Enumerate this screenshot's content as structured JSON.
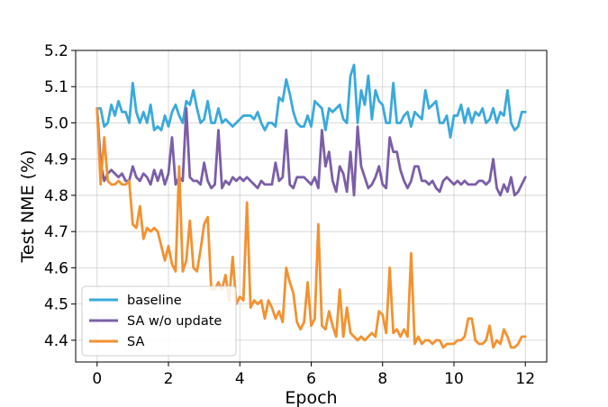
{
  "chart_data": {
    "type": "line",
    "xlabel": "Epoch",
    "ylabel": "Test NME (%)",
    "xlim": [
      -0.6,
      12.6
    ],
    "ylim": [
      4.34,
      5.2
    ],
    "xticks": [
      0,
      2,
      4,
      6,
      8,
      10,
      12
    ],
    "xtick_labels": [
      "0",
      "2",
      "4",
      "6",
      "8",
      "10",
      "12"
    ],
    "yticks": [
      4.4,
      4.5,
      4.6,
      4.7,
      4.8,
      4.9,
      5.0,
      5.1,
      5.2
    ],
    "ytick_labels": [
      "4.4",
      "4.5",
      "4.6",
      "4.7",
      "4.8",
      "4.9",
      "5.0",
      "5.1",
      "5.2"
    ],
    "grid": true,
    "legend_position": "lower-left",
    "series": [
      {
        "name": "baseline",
        "color": "#3aa9dc",
        "x": [
          0.0,
          0.1,
          0.2,
          0.3,
          0.4,
          0.5,
          0.6,
          0.7,
          0.8,
          0.9,
          1.0,
          1.1,
          1.2,
          1.3,
          1.4,
          1.5,
          1.6,
          1.7,
          1.8,
          1.9,
          2.0,
          2.1,
          2.2,
          2.3,
          2.4,
          2.5,
          2.6,
          2.7,
          2.8,
          2.9,
          3.0,
          3.1,
          3.2,
          3.3,
          3.4,
          3.5,
          3.6,
          3.7,
          3.8,
          3.9,
          4.0,
          4.1,
          4.2,
          4.3,
          4.4,
          4.5,
          4.6,
          4.7,
          4.8,
          4.9,
          5.0,
          5.1,
          5.2,
          5.3,
          5.4,
          5.5,
          5.6,
          5.7,
          5.8,
          5.9,
          6.0,
          6.1,
          6.2,
          6.3,
          6.4,
          6.5,
          6.6,
          6.7,
          6.8,
          6.9,
          7.0,
          7.1,
          7.2,
          7.3,
          7.4,
          7.5,
          7.6,
          7.7,
          7.8,
          7.9,
          8.0,
          8.1,
          8.2,
          8.3,
          8.4,
          8.5,
          8.6,
          8.7,
          8.8,
          8.9,
          9.0,
          9.1,
          9.2,
          9.3,
          9.4,
          9.5,
          9.6,
          9.7,
          9.8,
          9.9,
          10.0,
          10.1,
          10.2,
          10.3,
          10.4,
          10.5,
          10.6,
          10.7,
          10.8,
          10.9,
          11.0,
          11.1,
          11.2,
          11.3,
          11.4,
          11.5,
          11.6,
          11.7,
          11.8,
          11.9,
          12.0
        ],
        "y": [
          5.04,
          5.04,
          4.99,
          5.0,
          5.05,
          5.02,
          5.06,
          5.03,
          5.03,
          5.0,
          5.11,
          5.03,
          5.0,
          5.03,
          5.0,
          5.05,
          4.98,
          4.99,
          4.98,
          5.02,
          4.99,
          5.03,
          5.05,
          5.02,
          5.0,
          5.06,
          5.05,
          5.09,
          5.04,
          5.0,
          5.01,
          5.06,
          5.0,
          5.0,
          5.04,
          5.0,
          5.01,
          5.0,
          4.99,
          5.0,
          5.01,
          5.02,
          5.02,
          5.02,
          5.01,
          5.03,
          5.0,
          4.98,
          5.0,
          5.0,
          4.99,
          5.07,
          5.06,
          5.12,
          5.08,
          5.03,
          5.0,
          4.99,
          4.99,
          5.02,
          4.99,
          5.06,
          5.05,
          5.04,
          4.98,
          5.04,
          5.03,
          5.04,
          5.05,
          5.01,
          5.0,
          5.13,
          5.16,
          5.0,
          5.09,
          5.05,
          5.13,
          5.01,
          5.09,
          5.06,
          5.05,
          5.0,
          5.0,
          5.11,
          5.0,
          5.0,
          5.02,
          5.03,
          4.99,
          5.03,
          5.02,
          5.01,
          5.09,
          5.04,
          5.05,
          5.06,
          5.0,
          5.0,
          5.02,
          4.96,
          5.02,
          5.02,
          5.05,
          5.0,
          5.04,
          5.0,
          5.03,
          5.02,
          5.04,
          5.0,
          5.01,
          5.04,
          5.0,
          5.03,
          5.02,
          5.09,
          5.0,
          4.98,
          4.99,
          5.03,
          5.03
        ],
        "note": ""
      },
      {
        "name": "SA w/o update",
        "color": "#7b5ea7",
        "x": [
          0.0,
          0.1,
          0.2,
          0.3,
          0.4,
          0.5,
          0.6,
          0.7,
          0.8,
          0.9,
          1.0,
          1.1,
          1.2,
          1.3,
          1.4,
          1.5,
          1.6,
          1.7,
          1.8,
          1.9,
          2.0,
          2.1,
          2.2,
          2.3,
          2.4,
          2.5,
          2.6,
          2.7,
          2.8,
          2.9,
          3.0,
          3.1,
          3.2,
          3.3,
          3.4,
          3.5,
          3.6,
          3.7,
          3.8,
          3.9,
          4.0,
          4.1,
          4.2,
          4.3,
          4.4,
          4.5,
          4.6,
          4.7,
          4.8,
          4.9,
          5.0,
          5.1,
          5.2,
          5.3,
          5.4,
          5.5,
          5.6,
          5.7,
          5.8,
          5.9,
          6.0,
          6.1,
          6.2,
          6.3,
          6.4,
          6.5,
          6.6,
          6.7,
          6.8,
          6.9,
          7.0,
          7.1,
          7.2,
          7.3,
          7.4,
          7.5,
          7.6,
          7.7,
          7.8,
          7.9,
          8.0,
          8.1,
          8.2,
          8.3,
          8.4,
          8.5,
          8.6,
          8.7,
          8.8,
          8.9,
          9.0,
          9.1,
          9.2,
          9.3,
          9.4,
          9.5,
          9.6,
          9.7,
          9.8,
          9.9,
          10.0,
          10.1,
          10.2,
          10.3,
          10.4,
          10.5,
          10.6,
          10.7,
          10.8,
          10.9,
          11.0,
          11.1,
          11.2,
          11.3,
          11.4,
          11.5,
          11.6,
          11.7,
          11.8,
          11.9,
          12.0
        ],
        "y": [
          5.04,
          4.89,
          4.84,
          4.86,
          4.87,
          4.86,
          4.85,
          4.86,
          4.84,
          4.84,
          4.88,
          4.85,
          4.84,
          4.86,
          4.85,
          4.83,
          4.87,
          4.84,
          4.87,
          4.83,
          4.86,
          4.96,
          4.83,
          4.85,
          4.84,
          5.04,
          4.85,
          4.84,
          4.84,
          4.83,
          4.89,
          4.84,
          4.82,
          4.83,
          4.98,
          4.82,
          4.84,
          4.83,
          4.85,
          4.84,
          4.85,
          4.84,
          4.85,
          4.84,
          4.83,
          4.82,
          4.84,
          4.83,
          4.83,
          4.83,
          4.89,
          4.84,
          4.85,
          4.98,
          4.83,
          4.82,
          4.85,
          4.85,
          4.85,
          4.84,
          4.83,
          4.85,
          4.82,
          4.98,
          4.88,
          4.92,
          4.84,
          4.81,
          4.88,
          4.86,
          4.81,
          4.92,
          4.8,
          4.99,
          4.88,
          4.85,
          4.82,
          4.83,
          4.85,
          4.88,
          4.83,
          4.82,
          4.96,
          4.92,
          4.92,
          4.87,
          4.84,
          4.82,
          4.84,
          4.88,
          4.88,
          4.84,
          4.84,
          4.83,
          4.84,
          4.82,
          4.81,
          4.84,
          4.85,
          4.84,
          4.83,
          4.84,
          4.83,
          4.84,
          4.83,
          4.83,
          4.83,
          4.84,
          4.84,
          4.83,
          4.84,
          4.9,
          4.82,
          4.8,
          4.83,
          4.81,
          4.85,
          4.8,
          4.81,
          4.83,
          4.85
        ],
        "note": ""
      },
      {
        "name": "SA",
        "color": "#f29230",
        "x": [
          0.0,
          0.1,
          0.2,
          0.3,
          0.4,
          0.5,
          0.6,
          0.7,
          0.8,
          0.9,
          1.0,
          1.1,
          1.2,
          1.3,
          1.4,
          1.5,
          1.6,
          1.7,
          1.8,
          1.9,
          2.0,
          2.1,
          2.2,
          2.3,
          2.4,
          2.5,
          2.6,
          2.7,
          2.8,
          2.9,
          3.0,
          3.1,
          3.2,
          3.3,
          3.4,
          3.5,
          3.6,
          3.7,
          3.8,
          3.9,
          4.0,
          4.1,
          4.2,
          4.3,
          4.4,
          4.5,
          4.6,
          4.7,
          4.8,
          4.9,
          5.0,
          5.1,
          5.2,
          5.3,
          5.4,
          5.5,
          5.6,
          5.7,
          5.8,
          5.9,
          6.0,
          6.1,
          6.2,
          6.3,
          6.4,
          6.5,
          6.6,
          6.7,
          6.8,
          6.9,
          7.0,
          7.1,
          7.2,
          7.3,
          7.4,
          7.5,
          7.6,
          7.7,
          7.8,
          7.9,
          8.0,
          8.1,
          8.2,
          8.3,
          8.4,
          8.5,
          8.6,
          8.7,
          8.8,
          8.9,
          9.0,
          9.1,
          9.2,
          9.3,
          9.4,
          9.5,
          9.6,
          9.7,
          9.8,
          9.9,
          10.0,
          10.1,
          10.2,
          10.3,
          10.4,
          10.5,
          10.6,
          10.7,
          10.8,
          10.9,
          11.0,
          11.1,
          11.2,
          11.3,
          11.4,
          11.5,
          11.6,
          11.7,
          11.8,
          11.9,
          12.0
        ],
        "y": [
          5.04,
          4.83,
          4.96,
          4.84,
          4.83,
          4.83,
          4.84,
          4.83,
          4.83,
          4.84,
          4.72,
          4.71,
          4.77,
          4.68,
          4.71,
          4.7,
          4.71,
          4.7,
          4.66,
          4.62,
          4.66,
          4.61,
          4.59,
          4.88,
          4.59,
          4.62,
          4.73,
          4.6,
          4.59,
          4.65,
          4.72,
          4.74,
          4.54,
          4.54,
          4.56,
          4.54,
          4.58,
          4.51,
          4.63,
          4.5,
          4.52,
          4.51,
          4.78,
          4.49,
          4.51,
          4.5,
          4.51,
          4.46,
          4.51,
          4.49,
          4.46,
          4.48,
          4.45,
          4.6,
          4.56,
          4.53,
          4.45,
          4.43,
          4.45,
          4.56,
          4.44,
          4.46,
          4.72,
          4.44,
          4.43,
          4.48,
          4.44,
          4.41,
          4.54,
          4.41,
          4.49,
          4.42,
          4.41,
          4.4,
          4.41,
          4.4,
          4.41,
          4.42,
          4.41,
          4.48,
          4.47,
          4.42,
          4.6,
          4.42,
          4.43,
          4.41,
          4.43,
          4.41,
          4.64,
          4.39,
          4.41,
          4.39,
          4.4,
          4.4,
          4.39,
          4.4,
          4.4,
          4.38,
          4.39,
          4.39,
          4.39,
          4.4,
          4.4,
          4.41,
          4.46,
          4.46,
          4.4,
          4.39,
          4.39,
          4.4,
          4.44,
          4.38,
          4.4,
          4.39,
          4.43,
          4.41,
          4.38,
          4.38,
          4.39,
          4.41,
          4.41
        ],
        "note": ""
      }
    ]
  }
}
